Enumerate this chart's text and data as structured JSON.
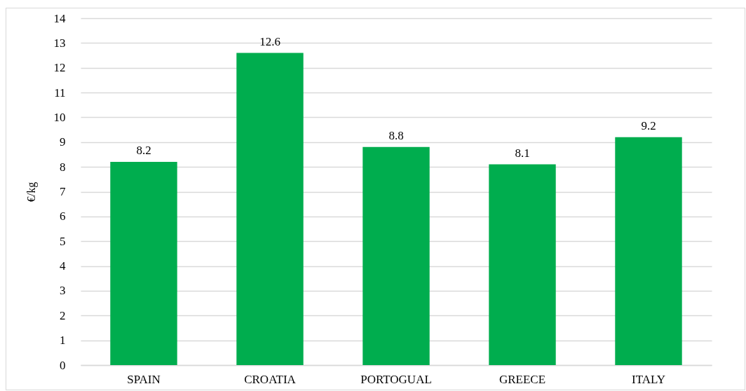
{
  "chart_data": {
    "type": "bar",
    "ylabel": "€/kg",
    "categories": [
      "SPAIN",
      "CROATIA",
      "PORTOGUAL",
      "GREECE",
      "ITALY"
    ],
    "values": [
      8.2,
      12.6,
      8.8,
      8.1,
      9.2
    ],
    "color": "#00ad4e",
    "ylim": [
      0,
      14
    ],
    "yticks": [
      0,
      1,
      2,
      3,
      4,
      5,
      6,
      7,
      8,
      9,
      10,
      11,
      12,
      13,
      14
    ],
    "grid": "y",
    "data_labels": true
  }
}
